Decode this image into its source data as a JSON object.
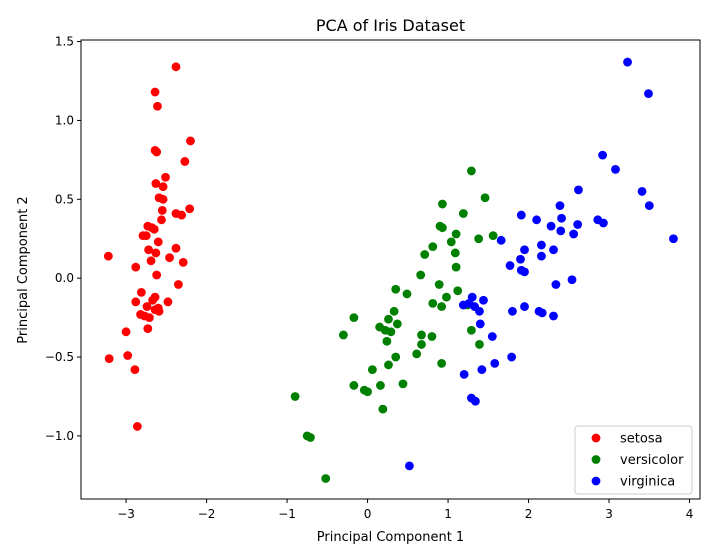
{
  "chart_data": {
    "type": "scatter",
    "title": "PCA of Iris Dataset",
    "xlabel": "Principal Component 1",
    "ylabel": "Principal Component 2",
    "xlim": [
      -3.56,
      4.13
    ],
    "ylim": [
      -1.4,
      1.51
    ],
    "xticks": [
      -3,
      -2,
      -1,
      0,
      1,
      2,
      3,
      4
    ],
    "yticks": [
      -1.0,
      -0.5,
      0.0,
      0.5,
      1.0,
      1.5
    ],
    "grid": false,
    "legend_position": "lower-right",
    "series": [
      {
        "name": "setosa",
        "color": "#ff0000",
        "points": [
          [
            -2.38,
            1.34
          ],
          [
            -2.64,
            1.18
          ],
          [
            -2.61,
            1.09
          ],
          [
            -2.2,
            0.87
          ],
          [
            -2.64,
            0.81
          ],
          [
            -2.62,
            0.8
          ],
          [
            -2.27,
            0.74
          ],
          [
            -2.51,
            0.64
          ],
          [
            -2.63,
            0.6
          ],
          [
            -2.54,
            0.58
          ],
          [
            -2.59,
            0.51
          ],
          [
            -2.54,
            0.5
          ],
          [
            -2.21,
            0.44
          ],
          [
            -2.55,
            0.43
          ],
          [
            -2.38,
            0.41
          ],
          [
            -2.31,
            0.4
          ],
          [
            -2.56,
            0.37
          ],
          [
            -2.73,
            0.33
          ],
          [
            -2.68,
            0.32
          ],
          [
            -2.65,
            0.31
          ],
          [
            -2.79,
            0.27
          ],
          [
            -2.75,
            0.27
          ],
          [
            -2.6,
            0.23
          ],
          [
            -2.72,
            0.18
          ],
          [
            -2.38,
            0.19
          ],
          [
            -2.63,
            0.16
          ],
          [
            -2.46,
            0.13
          ],
          [
            -3.22,
            0.14
          ],
          [
            -2.69,
            0.11
          ],
          [
            -2.29,
            0.1
          ],
          [
            -2.88,
            0.07
          ],
          [
            -2.62,
            0.02
          ],
          [
            -2.35,
            -0.04
          ],
          [
            -2.81,
            -0.09
          ],
          [
            -2.64,
            -0.12
          ],
          [
            -2.67,
            -0.14
          ],
          [
            -2.88,
            -0.15
          ],
          [
            -2.48,
            -0.15
          ],
          [
            -2.74,
            -0.18
          ],
          [
            -2.6,
            -0.19
          ],
          [
            -2.64,
            -0.2
          ],
          [
            -2.59,
            -0.21
          ],
          [
            -2.82,
            -0.23
          ],
          [
            -2.77,
            -0.24
          ],
          [
            -2.71,
            -0.25
          ],
          [
            -2.73,
            -0.32
          ],
          [
            -3.0,
            -0.34
          ],
          [
            -2.98,
            -0.49
          ],
          [
            -3.21,
            -0.51
          ],
          [
            -2.89,
            -0.58
          ],
          [
            -2.86,
            -0.94
          ]
        ]
      },
      {
        "name": "versicolor",
        "color": "#008000",
        "points": [
          [
            1.29,
            0.68
          ],
          [
            1.46,
            0.51
          ],
          [
            0.93,
            0.47
          ],
          [
            1.19,
            0.41
          ],
          [
            0.9,
            0.33
          ],
          [
            0.93,
            0.32
          ],
          [
            1.1,
            0.28
          ],
          [
            1.56,
            0.27
          ],
          [
            1.38,
            0.25
          ],
          [
            1.04,
            0.23
          ],
          [
            0.81,
            0.2
          ],
          [
            1.09,
            0.16
          ],
          [
            0.71,
            0.15
          ],
          [
            1.1,
            0.07
          ],
          [
            0.66,
            0.02
          ],
          [
            0.89,
            -0.04
          ],
          [
            0.35,
            -0.07
          ],
          [
            1.12,
            -0.08
          ],
          [
            0.49,
            -0.1
          ],
          [
            0.98,
            -0.12
          ],
          [
            0.81,
            -0.16
          ],
          [
            0.92,
            -0.18
          ],
          [
            1.24,
            -0.17
          ],
          [
            0.33,
            -0.21
          ],
          [
            -0.17,
            -0.25
          ],
          [
            0.26,
            -0.26
          ],
          [
            0.37,
            -0.29
          ],
          [
            0.15,
            -0.31
          ],
          [
            0.22,
            -0.33
          ],
          [
            1.29,
            -0.33
          ],
          [
            0.29,
            -0.34
          ],
          [
            -0.3,
            -0.36
          ],
          [
            0.67,
            -0.36
          ],
          [
            0.8,
            -0.37
          ],
          [
            0.24,
            -0.4
          ],
          [
            0.67,
            -0.42
          ],
          [
            1.39,
            -0.42
          ],
          [
            0.61,
            -0.48
          ],
          [
            0.35,
            -0.5
          ],
          [
            0.92,
            -0.54
          ],
          [
            0.26,
            -0.55
          ],
          [
            0.06,
            -0.58
          ],
          [
            0.44,
            -0.67
          ],
          [
            0.16,
            -0.68
          ],
          [
            -0.17,
            -0.68
          ],
          [
            -0.04,
            -0.71
          ],
          [
            0.0,
            -0.72
          ],
          [
            -0.9,
            -0.75
          ],
          [
            0.19,
            -0.83
          ],
          [
            -0.75,
            -1.0
          ],
          [
            -0.71,
            -1.01
          ],
          [
            -0.52,
            -1.27
          ]
        ]
      },
      {
        "name": "virginica",
        "color": "#0000ff",
        "points": [
          [
            3.23,
            1.37
          ],
          [
            3.49,
            1.17
          ],
          [
            2.92,
            0.78
          ],
          [
            3.08,
            0.69
          ],
          [
            2.62,
            0.56
          ],
          [
            3.41,
            0.55
          ],
          [
            3.5,
            0.46
          ],
          [
            2.39,
            0.46
          ],
          [
            1.91,
            0.4
          ],
          [
            2.1,
            0.37
          ],
          [
            2.41,
            0.38
          ],
          [
            2.86,
            0.37
          ],
          [
            2.93,
            0.35
          ],
          [
            2.61,
            0.34
          ],
          [
            2.28,
            0.33
          ],
          [
            2.4,
            0.3
          ],
          [
            2.56,
            0.28
          ],
          [
            3.8,
            0.25
          ],
          [
            1.66,
            0.24
          ],
          [
            2.16,
            0.21
          ],
          [
            1.95,
            0.18
          ],
          [
            2.31,
            0.18
          ],
          [
            2.16,
            0.14
          ],
          [
            1.9,
            0.12
          ],
          [
            1.77,
            0.08
          ],
          [
            1.91,
            0.05
          ],
          [
            1.95,
            0.04
          ],
          [
            2.54,
            -0.01
          ],
          [
            2.34,
            -0.04
          ],
          [
            1.3,
            -0.12
          ],
          [
            1.44,
            -0.14
          ],
          [
            1.26,
            -0.16
          ],
          [
            1.95,
            -0.18
          ],
          [
            1.19,
            -0.17
          ],
          [
            1.33,
            -0.18
          ],
          [
            1.39,
            -0.21
          ],
          [
            1.8,
            -0.21
          ],
          [
            2.13,
            -0.21
          ],
          [
            2.17,
            -0.22
          ],
          [
            2.31,
            -0.24
          ],
          [
            1.4,
            -0.29
          ],
          [
            1.55,
            -0.37
          ],
          [
            1.79,
            -0.5
          ],
          [
            1.58,
            -0.54
          ],
          [
            1.42,
            -0.58
          ],
          [
            1.2,
            -0.61
          ],
          [
            1.29,
            -0.76
          ],
          [
            1.34,
            -0.78
          ],
          [
            0.52,
            -1.19
          ]
        ]
      }
    ]
  }
}
